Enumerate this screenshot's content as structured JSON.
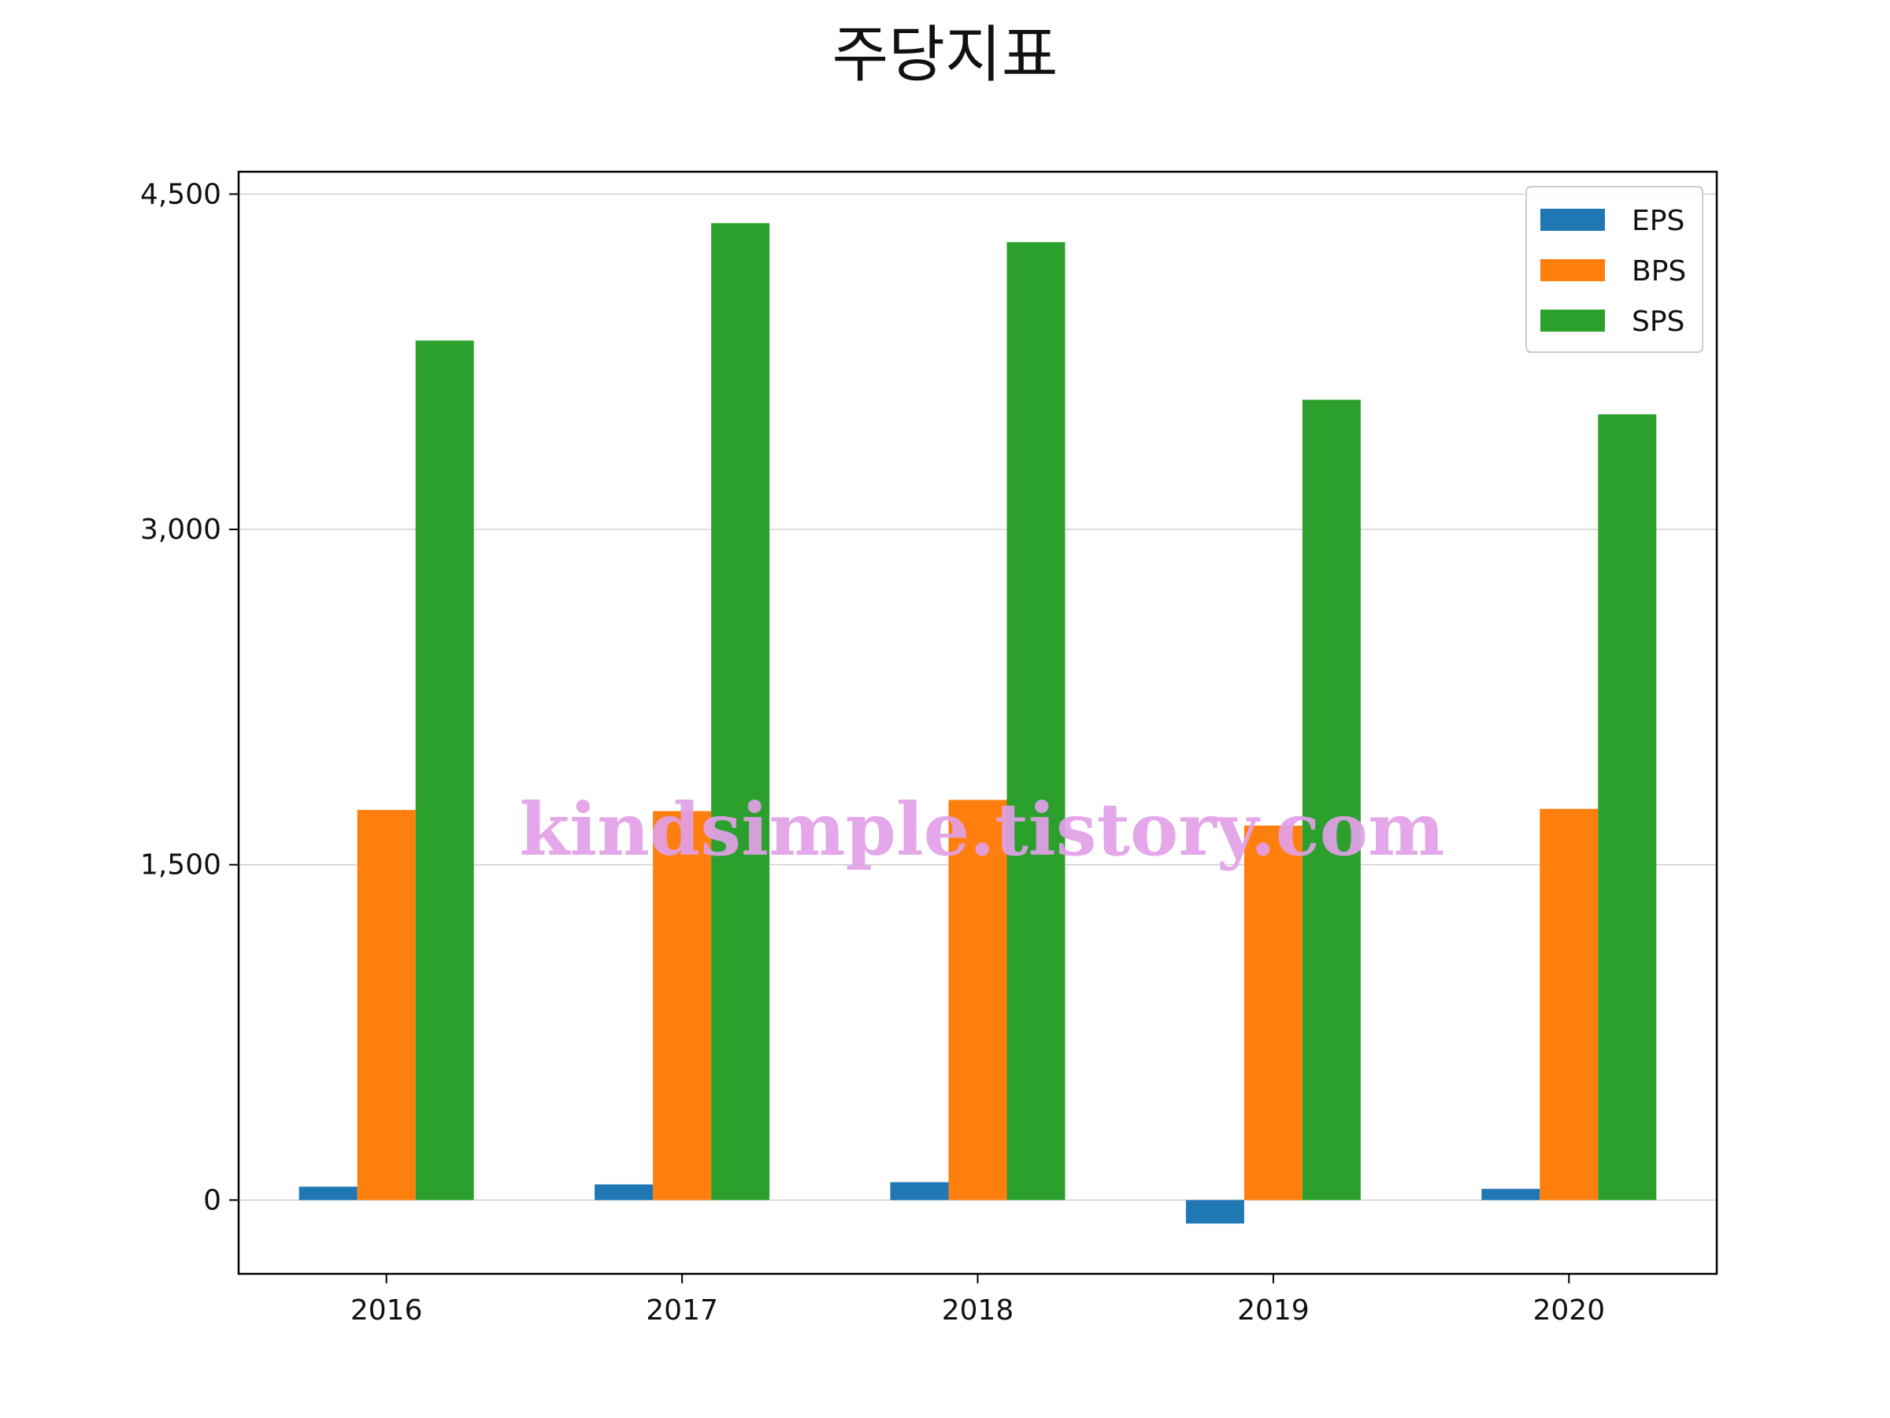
{
  "chart_data": {
    "type": "bar",
    "title": "주당지표",
    "xlabel": "",
    "ylabel": "",
    "categories": [
      "2016",
      "2017",
      "2018",
      "2019",
      "2020"
    ],
    "series": [
      {
        "name": "EPS",
        "color": "#1f77b4",
        "values": [
          60,
          70,
          80,
          -105,
          50
        ]
      },
      {
        "name": "BPS",
        "color": "#ff7f0e",
        "values": [
          1745,
          1740,
          1790,
          1675,
          1750
        ]
      },
      {
        "name": "SPS",
        "color": "#2ca02c",
        "values": [
          3845,
          4370,
          4285,
          3580,
          3515
        ]
      }
    ],
    "ylim": [
      -330,
      4600
    ],
    "yticks": [
      0,
      1500,
      3000,
      4500
    ],
    "ytick_labels": [
      "0",
      "1,500",
      "3,000",
      "4,500"
    ],
    "grid": {
      "y": true,
      "x": false
    },
    "legend": "top-right",
    "watermark": "kindsimple.tistory.com"
  }
}
